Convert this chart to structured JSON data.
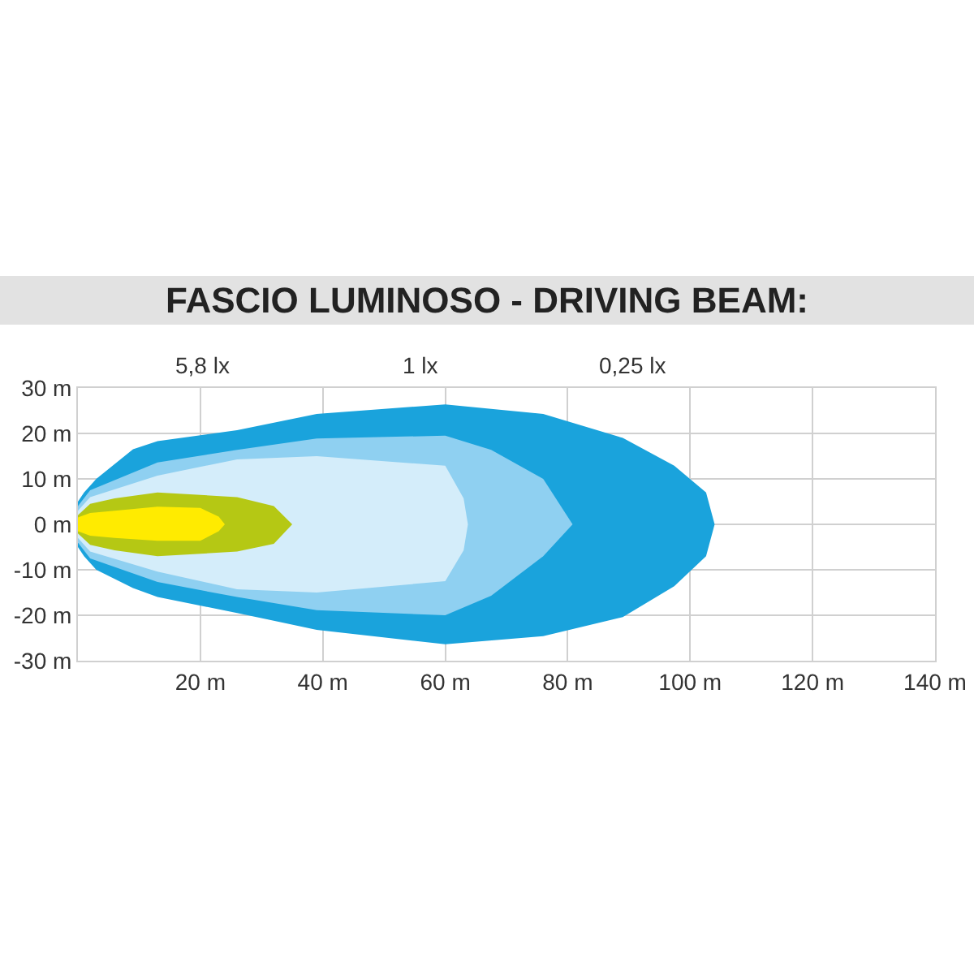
{
  "chart_data": {
    "type": "area",
    "title": "FASCIO LUMINOSO - DRIVING BEAM:",
    "series": [
      {
        "color": "#1aa3dc",
        "x": [
          0,
          1,
          3,
          9,
          13,
          26,
          39,
          60,
          76,
          89,
          97.4,
          102.6,
          104
        ],
        "values": [
          5,
          7,
          10,
          16.5,
          18.3,
          20.7,
          24.3,
          26.4,
          24.3,
          19,
          12.9,
          7,
          0
        ]
      },
      {
        "color": "#1aa3dc",
        "x": [
          0,
          1,
          3,
          9,
          13,
          26,
          39,
          60,
          76,
          89,
          97.4,
          102.6,
          104
        ],
        "values": [
          -5,
          -7,
          -10,
          -14,
          -16,
          -19.5,
          -23.2,
          -26.4,
          -24.6,
          -20.4,
          -13.6,
          -7,
          0
        ]
      },
      {
        "color": "#8fd0f1",
        "x": [
          0,
          2,
          13,
          26,
          39,
          60,
          67.5,
          76,
          80.8
        ],
        "values": [
          4,
          7.5,
          13.6,
          16.4,
          18.9,
          19.5,
          16.4,
          10,
          0
        ]
      },
      {
        "color": "#8fd0f1",
        "x": [
          0,
          2,
          13,
          26,
          39,
          60,
          67.5,
          76,
          80.8
        ],
        "values": [
          -4,
          -7.5,
          -12.7,
          -16,
          -18.9,
          -20,
          -15.7,
          -7,
          0
        ]
      },
      {
        "color": "#d4edfa",
        "x": [
          0,
          2,
          13,
          26,
          39,
          60,
          63,
          63.7
        ],
        "values": [
          3,
          6,
          10.7,
          14.3,
          15,
          12.9,
          5.7,
          0
        ]
      },
      {
        "color": "#d4edfa",
        "x": [
          0,
          2,
          13,
          26,
          39,
          60,
          63,
          63.7
        ],
        "values": [
          -3,
          -6,
          -10.4,
          -14.3,
          -15,
          -12.5,
          -5.7,
          0
        ]
      },
      {
        "color": "#b5c814",
        "x": [
          0,
          2,
          6,
          13,
          26,
          32,
          35
        ],
        "values": [
          2,
          4.5,
          5.7,
          7,
          6,
          4,
          0
        ]
      },
      {
        "color": "#b5c814",
        "x": [
          0,
          2,
          6,
          13,
          26,
          32,
          35
        ],
        "values": [
          -2,
          -4.5,
          -5.7,
          -7,
          -6,
          -4.3,
          0
        ]
      },
      {
        "color": "#ffeb00",
        "x": [
          0,
          2,
          6,
          13,
          20,
          23,
          24
        ],
        "values": [
          1.5,
          2.5,
          3,
          3.9,
          3.6,
          1.7,
          0
        ]
      },
      {
        "color": "#ffeb00",
        "x": [
          0,
          2,
          6,
          13,
          20,
          23,
          24
        ],
        "values": [
          -1.5,
          -2.5,
          -3,
          -3.6,
          -3.6,
          -1.5,
          0
        ]
      }
    ],
    "annotations": [
      "5,8 lx",
      "1 lx",
      "0,25 lx"
    ],
    "xlim": [
      0,
      140
    ],
    "xticks": [
      {
        "value": 20,
        "label": "20 m"
      },
      {
        "value": 40,
        "label": "40 m"
      },
      {
        "value": 60,
        "label": "60 m"
      },
      {
        "value": 80,
        "label": "80 m"
      },
      {
        "value": 100,
        "label": "100 m"
      },
      {
        "value": 120,
        "label": "120 m"
      },
      {
        "value": 140,
        "label": "140 m"
      }
    ],
    "ylim": [
      -30,
      30
    ],
    "yticks": [
      {
        "value": 30,
        "label": "30 m"
      },
      {
        "value": 20,
        "label": "20 m"
      },
      {
        "value": 10,
        "label": "10 m"
      },
      {
        "value": 0,
        "label": "0 m"
      },
      {
        "value": -10,
        "label": "-10 m"
      },
      {
        "value": -20,
        "label": "-20 m"
      },
      {
        "value": -30,
        "label": "-30 m"
      }
    ],
    "grid": true
  }
}
